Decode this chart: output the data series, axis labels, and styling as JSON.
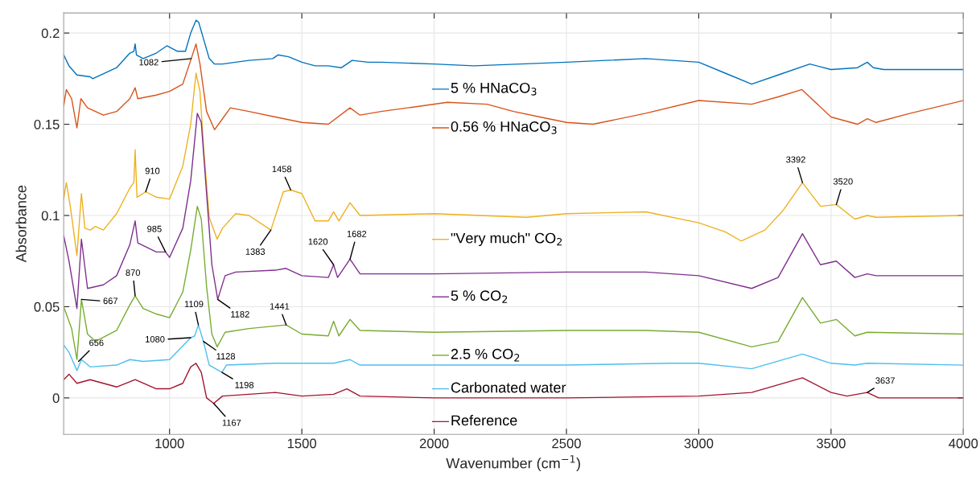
{
  "chart_data": {
    "type": "line",
    "xlabel": "Wavenumber (cm$^{−1}$)",
    "ylabel": "Absorbance",
    "xlim": [
      600,
      4000
    ],
    "ylim": [
      -0.02,
      0.211
    ],
    "xticks": [
      1000,
      1500,
      2000,
      2500,
      3000,
      3500,
      4000
    ],
    "yticks": [
      0,
      0.05,
      {
        "value": 0.1,
        "label": "0.1"
      },
      0.15,
      {
        "value": 0.2,
        "label": "0.2"
      }
    ],
    "grid": true,
    "legend": "center",
    "series": [
      {
        "name": "5 % HNaCO$_{3}$",
        "color": "#0072bd",
        "x": [
          600,
          620,
          650,
          700,
          710,
          800,
          850,
          865,
          870,
          875,
          900,
          950,
          990,
          1030,
          1060,
          1080,
          1100,
          1110,
          1130,
          1150,
          1170,
          1200,
          1300,
          1390,
          1410,
          1450,
          1500,
          1550,
          1600,
          1650,
          1690,
          1750,
          1800,
          2000,
          2150,
          2500,
          2800,
          3000,
          3100,
          3200,
          3300,
          3420,
          3500,
          3600,
          3637,
          3660,
          3700,
          4000
        ],
        "values": [
          0.188,
          0.182,
          0.177,
          0.176,
          0.175,
          0.181,
          0.189,
          0.19,
          0.194,
          0.188,
          0.186,
          0.189,
          0.193,
          0.19,
          0.19,
          0.2,
          0.207,
          0.206,
          0.196,
          0.186,
          0.183,
          0.183,
          0.185,
          0.186,
          0.188,
          0.187,
          0.184,
          0.182,
          0.182,
          0.181,
          0.185,
          0.184,
          0.184,
          0.183,
          0.182,
          0.184,
          0.186,
          0.184,
          0.178,
          0.172,
          0.177,
          0.183,
          0.18,
          0.181,
          0.184,
          0.181,
          0.18,
          0.18
        ]
      },
      {
        "name": "0.56 % HNaCO$_{3}$",
        "color": "#d95319",
        "x": [
          600,
          610,
          630,
          650,
          665,
          690,
          750,
          800,
          850,
          870,
          880,
          950,
          1000,
          1050,
          1082,
          1100,
          1115,
          1140,
          1170,
          1200,
          1230,
          1300,
          1400,
          1500,
          1600,
          1682,
          1720,
          1800,
          2050,
          2200,
          2300,
          2400,
          2500,
          2600,
          2800,
          3000,
          3200,
          3300,
          3390,
          3500,
          3600,
          3637,
          3670,
          3800,
          4000
        ],
        "values": [
          0.16,
          0.169,
          0.164,
          0.148,
          0.164,
          0.159,
          0.155,
          0.157,
          0.164,
          0.17,
          0.164,
          0.166,
          0.168,
          0.172,
          0.186,
          0.194,
          0.183,
          0.157,
          0.147,
          0.153,
          0.159,
          0.157,
          0.154,
          0.151,
          0.15,
          0.159,
          0.155,
          0.157,
          0.162,
          0.161,
          0.157,
          0.154,
          0.151,
          0.15,
          0.156,
          0.163,
          0.161,
          0.165,
          0.169,
          0.154,
          0.15,
          0.153,
          0.151,
          0.156,
          0.163
        ]
      },
      {
        "name": "\"Very much\" CO$_{2}$",
        "color": "#edb120",
        "x": [
          600,
          610,
          625,
          650,
          667,
          680,
          700,
          720,
          750,
          800,
          850,
          865,
          870,
          877,
          910,
          950,
          1000,
          1050,
          1080,
          1100,
          1115,
          1130,
          1150,
          1180,
          1200,
          1250,
          1300,
          1383,
          1430,
          1458,
          1500,
          1550,
          1600,
          1620,
          1640,
          1682,
          1720,
          2000,
          2350,
          2500,
          2800,
          3000,
          3100,
          3160,
          3250,
          3320,
          3392,
          3460,
          3520,
          3590,
          3637,
          3670,
          4000
        ],
        "values": [
          0.109,
          0.118,
          0.105,
          0.078,
          0.112,
          0.093,
          0.092,
          0.094,
          0.092,
          0.101,
          0.115,
          0.118,
          0.136,
          0.11,
          0.113,
          0.11,
          0.109,
          0.127,
          0.15,
          0.178,
          0.168,
          0.135,
          0.099,
          0.087,
          0.093,
          0.101,
          0.1,
          0.092,
          0.113,
          0.114,
          0.112,
          0.097,
          0.097,
          0.102,
          0.097,
          0.107,
          0.1,
          0.101,
          0.099,
          0.101,
          0.102,
          0.096,
          0.091,
          0.086,
          0.092,
          0.103,
          0.118,
          0.105,
          0.106,
          0.098,
          0.1,
          0.099,
          0.1
        ]
      },
      {
        "name": "5 % CO$_{2}$",
        "color": "#7e2f8e",
        "x": [
          600,
          620,
          650,
          667,
          690,
          750,
          800,
          850,
          870,
          880,
          950,
          985,
          1000,
          1050,
          1080,
          1105,
          1120,
          1140,
          1160,
          1182,
          1210,
          1250,
          1400,
          1440,
          1500,
          1600,
          1620,
          1635,
          1682,
          1720,
          2000,
          2500,
          2800,
          3000,
          3200,
          3300,
          3392,
          3460,
          3520,
          3590,
          3637,
          3670,
          4000
        ],
        "values": [
          0.089,
          0.075,
          0.049,
          0.087,
          0.06,
          0.062,
          0.067,
          0.084,
          0.097,
          0.085,
          0.08,
          0.08,
          0.077,
          0.093,
          0.119,
          0.156,
          0.151,
          0.112,
          0.073,
          0.054,
          0.067,
          0.069,
          0.07,
          0.071,
          0.067,
          0.066,
          0.073,
          0.066,
          0.076,
          0.068,
          0.068,
          0.069,
          0.069,
          0.067,
          0.06,
          0.066,
          0.09,
          0.073,
          0.075,
          0.066,
          0.068,
          0.067,
          0.067
        ]
      },
      {
        "name": "2.5 % CO$_{2}$",
        "color": "#77ac30",
        "x": [
          600,
          630,
          650,
          667,
          690,
          720,
          800,
          850,
          870,
          900,
          950,
          1000,
          1050,
          1080,
          1105,
          1120,
          1140,
          1160,
          1180,
          1210,
          1300,
          1441,
          1500,
          1600,
          1620,
          1640,
          1682,
          1720,
          2000,
          2500,
          2800,
          3000,
          3200,
          3300,
          3392,
          3460,
          3520,
          3590,
          3637,
          4000
        ],
        "values": [
          0.05,
          0.038,
          0.021,
          0.054,
          0.035,
          0.031,
          0.037,
          0.051,
          0.056,
          0.049,
          0.046,
          0.044,
          0.058,
          0.081,
          0.105,
          0.098,
          0.061,
          0.035,
          0.028,
          0.036,
          0.038,
          0.04,
          0.035,
          0.034,
          0.042,
          0.034,
          0.043,
          0.037,
          0.036,
          0.037,
          0.037,
          0.036,
          0.028,
          0.031,
          0.055,
          0.041,
          0.043,
          0.034,
          0.036,
          0.035
        ]
      },
      {
        "name": "Carbonated water",
        "color": "#4dbeee",
        "x": [
          600,
          620,
          650,
          667,
          700,
          800,
          850,
          900,
          1000,
          1080,
          1095,
          1109,
          1128,
          1150,
          1198,
          1215,
          1400,
          1620,
          1682,
          1720,
          2000,
          2500,
          2900,
          3000,
          3200,
          3392,
          3500,
          3590,
          3637,
          4000
        ],
        "values": [
          0.029,
          0.025,
          0.015,
          0.021,
          0.017,
          0.018,
          0.021,
          0.02,
          0.021,
          0.033,
          0.034,
          0.04,
          0.031,
          0.018,
          0.014,
          0.018,
          0.019,
          0.019,
          0.021,
          0.018,
          0.018,
          0.018,
          0.019,
          0.019,
          0.016,
          0.024,
          0.019,
          0.018,
          0.019,
          0.018
        ]
      },
      {
        "name": "Reference",
        "color": "#a2142f",
        "x": [
          600,
          620,
          650,
          700,
          800,
          870,
          950,
          1000,
          1050,
          1080,
          1100,
          1120,
          1140,
          1167,
          1200,
          1300,
          1400,
          1500,
          1620,
          1670,
          1720,
          2000,
          2500,
          3000,
          3200,
          3392,
          3500,
          3560,
          3637,
          3680,
          4000
        ],
        "values": [
          0.01,
          0.013,
          0.008,
          0.01,
          0.006,
          0.01,
          0.005,
          0.005,
          0.008,
          0.017,
          0.019,
          0.014,
          0.0,
          -0.003,
          0.001,
          0.002,
          0.003,
          0.001,
          0.002,
          0.005,
          0.001,
          0.0,
          0.0,
          0.001,
          0.003,
          0.011,
          0.003,
          0.001,
          0.003,
          0.0,
          0.0
        ]
      }
    ],
    "annotations": [
      {
        "text": "1082",
        "x": 1082,
        "y": 0.186
      },
      {
        "text": "910",
        "x": 910,
        "y": 0.113
      },
      {
        "text": "1458",
        "x": 1458,
        "y": 0.114
      },
      {
        "text": "1383",
        "x": 1383,
        "y": 0.092
      },
      {
        "text": "3392",
        "x": 3392,
        "y": 0.118
      },
      {
        "text": "3520",
        "x": 3520,
        "y": 0.106
      },
      {
        "text": "985",
        "x": 985,
        "y": 0.08
      },
      {
        "text": "1620",
        "x": 1620,
        "y": 0.073
      },
      {
        "text": "1682",
        "x": 1682,
        "y": 0.076
      },
      {
        "text": "667",
        "x": 667,
        "y": 0.054
      },
      {
        "text": "870",
        "x": 870,
        "y": 0.056
      },
      {
        "text": "1182",
        "x": 1182,
        "y": 0.054
      },
      {
        "text": "1441",
        "x": 1441,
        "y": 0.04
      },
      {
        "text": "1109",
        "x": 1109,
        "y": 0.04
      },
      {
        "text": "1080",
        "x": 1080,
        "y": 0.033
      },
      {
        "text": "1128",
        "x": 1128,
        "y": 0.031
      },
      {
        "text": "656",
        "x": 656,
        "y": 0.02
      },
      {
        "text": "1198",
        "x": 1198,
        "y": 0.014
      },
      {
        "text": "1167",
        "x": 1167,
        "y": -0.003
      },
      {
        "text": "3637",
        "x": 3637,
        "y": 0.003
      }
    ]
  }
}
